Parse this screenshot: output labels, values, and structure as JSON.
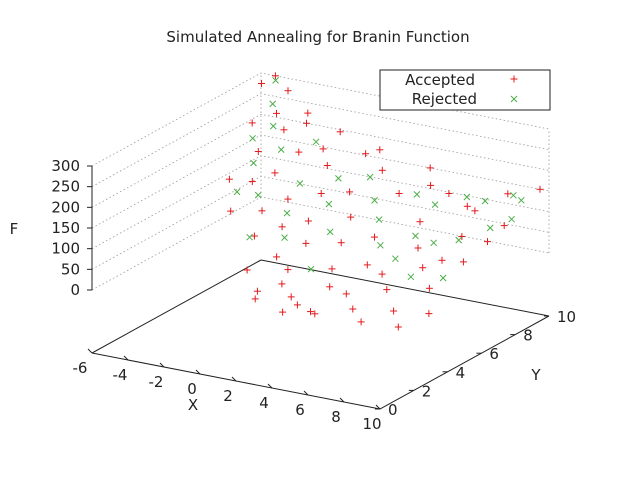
{
  "chart_data": {
    "type": "scatter",
    "title": "Simulated Annealing for Branin Function",
    "xlabel": "X",
    "ylabel": "Y",
    "zlabel": "F",
    "xlim": [
      -6,
      10
    ],
    "ylim": [
      0,
      10
    ],
    "zlim": [
      0,
      300
    ],
    "xticks": [
      "-6",
      "-4",
      "-2",
      "0",
      "2",
      "4",
      "6",
      "8",
      "10"
    ],
    "yticks": [
      "0",
      "2",
      "4",
      "6",
      "8",
      "10"
    ],
    "zticks": [
      "0",
      "50",
      "100",
      "150",
      "200",
      "250",
      "300"
    ],
    "grid": true,
    "legend_position": "top-right",
    "series": [
      {
        "name": "Accepted",
        "marker": "+",
        "color": "#e41a1c",
        "points": [
          [
            -5.2,
            10,
            300
          ],
          [
            -5.5,
            9.5,
            290
          ],
          [
            -4.5,
            10,
            270
          ],
          [
            -4.8,
            8.2,
            230
          ],
          [
            -4.2,
            9.0,
            240
          ],
          [
            -3.8,
            7.5,
            185
          ],
          [
            -3.6,
            8.8,
            210
          ],
          [
            -3.2,
            6.5,
            140
          ],
          [
            -3.0,
            9.5,
            215
          ],
          [
            -2.6,
            7.2,
            150
          ],
          [
            -2.4,
            8.4,
            175
          ],
          [
            -2.0,
            5.8,
            95
          ],
          [
            -1.8,
            9.2,
            170
          ],
          [
            -1.5,
            6.8,
            105
          ],
          [
            -1.2,
            4.5,
            70
          ],
          [
            -1.0,
            8.6,
            150
          ],
          [
            -0.6,
            5.5,
            75
          ],
          [
            -0.4,
            7.6,
            110
          ],
          [
            0.0,
            9.8,
            160
          ],
          [
            0.2,
            6.2,
            80
          ],
          [
            0.5,
            4.0,
            45
          ],
          [
            0.8,
            8.0,
            115
          ],
          [
            1.0,
            5.2,
            55
          ],
          [
            1.3,
            9.4,
            140
          ],
          [
            1.6,
            3.5,
            35
          ],
          [
            1.8,
            7.0,
            85
          ],
          [
            2.2,
            2.5,
            28
          ],
          [
            2.4,
            5.8,
            55
          ],
          [
            2.8,
            8.8,
            110
          ],
          [
            3.0,
            2.2,
            10
          ],
          [
            3.2,
            4.4,
            30
          ],
          [
            3.5,
            6.6,
            60
          ],
          [
            3.8,
            9.6,
            120
          ],
          [
            4.0,
            1.5,
            15
          ],
          [
            4.2,
            3.2,
            22
          ],
          [
            4.6,
            5.0,
            38
          ],
          [
            4.9,
            7.8,
            82
          ],
          [
            5.2,
            1.0,
            20
          ],
          [
            5.5,
            2.8,
            25
          ],
          [
            5.8,
            4.6,
            35
          ],
          [
            6.1,
            6.4,
            60
          ],
          [
            6.4,
            9.0,
            105
          ],
          [
            6.8,
            1.8,
            22
          ],
          [
            7.0,
            3.6,
            30
          ],
          [
            7.3,
            5.4,
            45
          ],
          [
            7.6,
            7.4,
            78
          ],
          [
            7.9,
            9.8,
            130
          ],
          [
            8.2,
            0.8,
            25
          ],
          [
            8.5,
            2.4,
            18
          ],
          [
            8.8,
            4.2,
            35
          ],
          [
            9.0,
            6.0,
            60
          ],
          [
            9.2,
            8.2,
            100
          ],
          [
            9.5,
            10,
            150
          ],
          [
            9.7,
            1.4,
            12
          ],
          [
            9.9,
            3.0,
            10
          ],
          [
            -4.0,
            6.0,
            150
          ],
          [
            -2.8,
            4.8,
            110
          ],
          [
            -0.2,
            3.0,
            30
          ],
          [
            1.5,
            1.8,
            20
          ],
          [
            2.6,
            0.5,
            40
          ],
          [
            6.0,
            0.4,
            35
          ],
          [
            8.0,
            5.8,
            60
          ],
          [
            9.4,
            7.0,
            90
          ],
          [
            0.6,
            10,
            170
          ],
          [
            3.4,
            10,
            150
          ],
          [
            5.0,
            9.4,
            115
          ],
          [
            7.2,
            8.6,
            110
          ],
          [
            -1.6,
            10,
            195
          ],
          [
            -3.4,
            10,
            225
          ],
          [
            4.4,
            0.2,
            30
          ]
        ]
      },
      {
        "name": "Rejected",
        "marker": "x",
        "color": "#4daf4a",
        "points": [
          [
            -5.0,
            9.8,
            295
          ],
          [
            -4.6,
            9.2,
            255
          ],
          [
            -4.0,
            8.6,
            220
          ],
          [
            -3.6,
            7.0,
            170
          ],
          [
            -3.0,
            8.0,
            185
          ],
          [
            -2.4,
            6.0,
            125
          ],
          [
            -2.0,
            9.0,
            190
          ],
          [
            -1.4,
            7.4,
            130
          ],
          [
            -0.8,
            6.0,
            95
          ],
          [
            -0.2,
            8.4,
            130
          ],
          [
            0.4,
            7.2,
            100
          ],
          [
            1.0,
            9.0,
            130
          ],
          [
            1.6,
            6.0,
            70
          ],
          [
            2.0,
            8.2,
            100
          ],
          [
            2.6,
            3.8,
            38
          ],
          [
            3.0,
            7.4,
            80
          ],
          [
            3.6,
            9.0,
            110
          ],
          [
            4.2,
            6.2,
            55
          ],
          [
            4.8,
            8.8,
            100
          ],
          [
            5.4,
            7.0,
            70
          ],
          [
            6.0,
            9.4,
            115
          ],
          [
            6.6,
            6.8,
            68
          ],
          [
            7.2,
            9.2,
            120
          ],
          [
            7.8,
            7.0,
            80
          ],
          [
            8.4,
            9.6,
            135
          ],
          [
            8.8,
            7.8,
            100
          ],
          [
            9.4,
            9.0,
            145
          ],
          [
            9.8,
            8.0,
            125
          ],
          [
            -4.4,
            7.8,
            205
          ],
          [
            -3.2,
            5.6,
            135
          ],
          [
            -1.0,
            4.0,
            80
          ],
          [
            0.0,
            5.0,
            65
          ],
          [
            5.6,
            5.6,
            48
          ],
          [
            7.4,
            4.6,
            42
          ],
          [
            9.0,
            4.8,
            48
          ]
        ]
      }
    ]
  }
}
